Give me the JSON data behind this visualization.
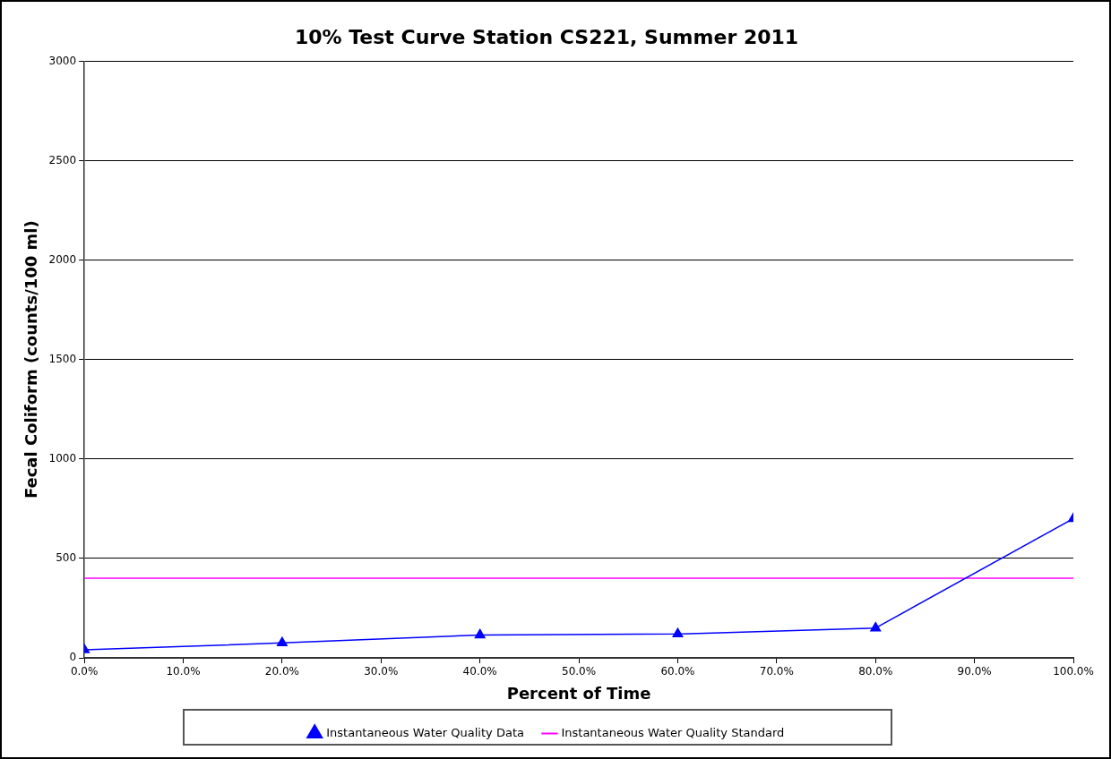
{
  "chart_data": {
    "type": "line",
    "title": "10% Test Curve Station CS221, Summer 2011",
    "xlabel": "Percent of Time",
    "ylabel": "Fecal Coliform (counts/100 ml)",
    "x": [
      0,
      20,
      40,
      60,
      80,
      100
    ],
    "series": [
      {
        "name": "Instantaneous Water Quality Data",
        "color": "#0000ff",
        "values": [
          40,
          75,
          115,
          120,
          150,
          700
        ],
        "marker": "triangle"
      },
      {
        "name": "Instantaneous Water Quality Standard",
        "color": "#ff00ff",
        "x": [
          0,
          100
        ],
        "values": [
          400,
          400
        ],
        "marker": "none"
      }
    ],
    "xlim": [
      0,
      100
    ],
    "xticks": [
      {
        "value": 0,
        "label": "0.0%"
      },
      {
        "value": 10,
        "label": "10.0%"
      },
      {
        "value": 20,
        "label": "20.0%"
      },
      {
        "value": 30,
        "label": "30.0%"
      },
      {
        "value": 40,
        "label": "40.0%"
      },
      {
        "value": 50,
        "label": "50.0%"
      },
      {
        "value": 60,
        "label": "60.0%"
      },
      {
        "value": 70,
        "label": "70.0%"
      },
      {
        "value": 80,
        "label": "80.0%"
      },
      {
        "value": 90,
        "label": "90.0%"
      },
      {
        "value": 100,
        "label": "100.0%"
      }
    ],
    "ylim": [
      0,
      3000
    ],
    "yticks": [
      0,
      500,
      1000,
      1500,
      2000,
      2500,
      3000
    ],
    "grid": "y",
    "legend": "bottom",
    "line_style": "solid"
  }
}
